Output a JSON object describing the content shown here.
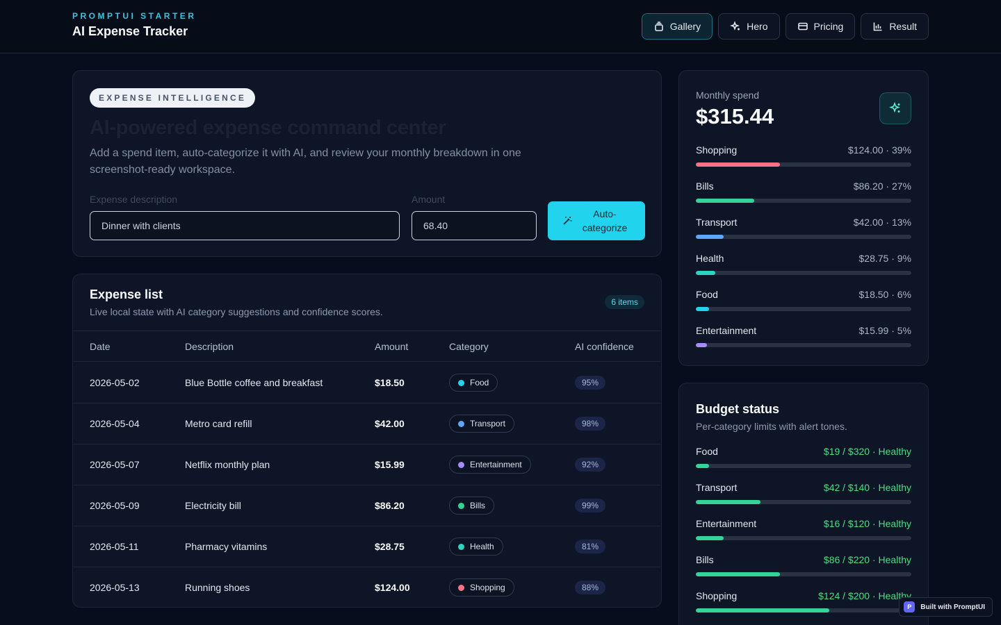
{
  "header": {
    "eyebrow": "PROMPTUI STARTER",
    "title": "AI Expense Tracker",
    "nav": [
      {
        "label": "Gallery",
        "icon": "gallery-icon",
        "active": true
      },
      {
        "label": "Hero",
        "icon": "sparkle-icon",
        "active": false
      },
      {
        "label": "Pricing",
        "icon": "card-icon",
        "active": false
      },
      {
        "label": "Result",
        "icon": "bar-chart-icon",
        "active": false
      }
    ]
  },
  "hero": {
    "pill": "EXPENSE INTELLIGENCE",
    "title": "AI-powered expense command center",
    "description": "Add a spend item, auto-categorize it with AI, and review your monthly breakdown in one screenshot-ready workspace.",
    "description_label": "Expense description",
    "description_value": "Dinner with clients",
    "amount_label": "Amount",
    "amount_value": "68.40",
    "cta": "Auto-categorize"
  },
  "list": {
    "title": "Expense list",
    "subtitle": "Live local state with AI category suggestions and confidence scores.",
    "count": "6 items",
    "columns": [
      "Date",
      "Description",
      "Amount",
      "Category",
      "AI confidence"
    ],
    "rows": [
      {
        "date": "2026-05-02",
        "description": "Blue Bottle coffee and breakfast",
        "amount": "$18.50",
        "category": "Food",
        "color": "#22d3ee",
        "confidence": "95%"
      },
      {
        "date": "2026-05-04",
        "description": "Metro card refill",
        "amount": "$42.00",
        "category": "Transport",
        "color": "#60a5fa",
        "confidence": "98%"
      },
      {
        "date": "2026-05-07",
        "description": "Netflix monthly plan",
        "amount": "$15.99",
        "category": "Entertainment",
        "color": "#a78bfa",
        "confidence": "92%"
      },
      {
        "date": "2026-05-09",
        "description": "Electricity bill",
        "amount": "$86.20",
        "category": "Bills",
        "color": "#34d399",
        "confidence": "99%"
      },
      {
        "date": "2026-05-11",
        "description": "Pharmacy vitamins",
        "amount": "$28.75",
        "category": "Health",
        "color": "#2dd4bf",
        "confidence": "81%"
      },
      {
        "date": "2026-05-13",
        "description": "Running shoes",
        "amount": "$124.00",
        "category": "Shopping",
        "color": "#fb7185",
        "confidence": "88%"
      }
    ]
  },
  "monthly": {
    "label": "Monthly spend",
    "total": "$315.44",
    "icon": "sparkle-icon",
    "items": [
      {
        "name": "Shopping",
        "value": "$124.00 · 39%",
        "fraction": 0.39,
        "color": "#fb7185"
      },
      {
        "name": "Bills",
        "value": "$86.20 · 27%",
        "fraction": 0.27,
        "color": "#34d399"
      },
      {
        "name": "Transport",
        "value": "$42.00 · 13%",
        "fraction": 0.13,
        "color": "#60a5fa"
      },
      {
        "name": "Health",
        "value": "$28.75 · 9%",
        "fraction": 0.09,
        "color": "#2dd4bf"
      },
      {
        "name": "Food",
        "value": "$18.50 · 6%",
        "fraction": 0.06,
        "color": "#22d3ee"
      },
      {
        "name": "Entertainment",
        "value": "$15.99 · 5%",
        "fraction": 0.05,
        "color": "#a78bfa"
      }
    ]
  },
  "budget": {
    "title": "Budget status",
    "subtitle": "Per-category limits with alert tones.",
    "items": [
      {
        "name": "Food",
        "value": "$19 / $320 · Healthy",
        "fraction": 0.06
      },
      {
        "name": "Transport",
        "value": "$42 / $140 · Healthy",
        "fraction": 0.3
      },
      {
        "name": "Entertainment",
        "value": "$16 / $120 · Healthy",
        "fraction": 0.13
      },
      {
        "name": "Bills",
        "value": "$86 / $220 · Healthy",
        "fraction": 0.39
      },
      {
        "name": "Shopping",
        "value": "$124 / $200 · Healthy",
        "fraction": 0.62
      }
    ],
    "healthy_color": "#34d399"
  },
  "built_with": {
    "logo": "P",
    "label": "Built with PromptUI"
  }
}
